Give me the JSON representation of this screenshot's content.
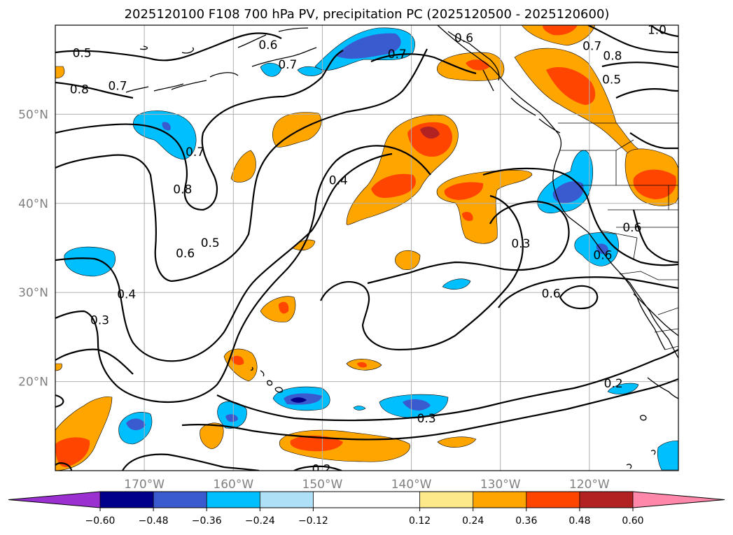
{
  "chart_data": {
    "type": "heatmap",
    "title": "2025120100 F108 700 hPa PV, precipitation PC (2025120500 - 2025120600)",
    "xlabel": "",
    "ylabel": "",
    "xlim": [
      -180,
      -110
    ],
    "ylim": [
      10,
      60
    ],
    "x_ticks": [
      -170,
      -160,
      -150,
      -140,
      -130,
      -120
    ],
    "x_tick_labels": [
      "170°W",
      "160°W",
      "150°W",
      "140°W",
      "130°W",
      "120°W"
    ],
    "y_ticks": [
      20,
      30,
      40,
      50
    ],
    "y_tick_labels": [
      "20°N",
      "30°N",
      "40°N",
      "50°N"
    ],
    "grid": true,
    "colorbar": {
      "levels": [
        -0.6,
        -0.48,
        -0.36,
        -0.24,
        -0.12,
        0.12,
        0.24,
        0.36,
        0.48,
        0.6
      ],
      "tick_labels": [
        "−0.60",
        "−0.48",
        "−0.36",
        "−0.24",
        "−0.12",
        "0.12",
        "0.24",
        "0.36",
        "0.48",
        "0.60"
      ],
      "colors": [
        "#9b30d0",
        "#00008b",
        "#3a5bd0",
        "#00bfff",
        "#aee0f8",
        "#ffffff",
        "#fde88a",
        "#ffa500",
        "#ff4500",
        "#b22222",
        "#ff88aa"
      ],
      "extend": "both"
    },
    "pv_contour_labels": [
      {
        "value": "0.5",
        "lon": -177.0,
        "lat": 56.9
      },
      {
        "value": "0.6",
        "lon": -156.1,
        "lat": 57.8
      },
      {
        "value": "0.7",
        "lon": -153.9,
        "lat": 55.6
      },
      {
        "value": "0.7",
        "lon": -141.6,
        "lat": 56.8
      },
      {
        "value": "0.6",
        "lon": -134.1,
        "lat": 58.6
      },
      {
        "value": "0.8",
        "lon": -177.3,
        "lat": 52.8
      },
      {
        "value": "0.7",
        "lon": -173.0,
        "lat": 53.2
      },
      {
        "value": "0.7",
        "lon": -164.3,
        "lat": 45.8
      },
      {
        "value": "0.8",
        "lon": -165.7,
        "lat": 41.6
      },
      {
        "value": "0.4",
        "lon": -148.2,
        "lat": 42.6
      },
      {
        "value": "0.6",
        "lon": -165.4,
        "lat": 34.4
      },
      {
        "value": "0.5",
        "lon": -162.6,
        "lat": 35.6
      },
      {
        "value": "0.4",
        "lon": -172.0,
        "lat": 29.8
      },
      {
        "value": "0.3",
        "lon": -175.0,
        "lat": 26.9
      },
      {
        "value": "0.3",
        "lon": -127.7,
        "lat": 35.5
      },
      {
        "value": "0.6",
        "lon": -124.3,
        "lat": 29.9
      },
      {
        "value": "0.6",
        "lon": -118.5,
        "lat": 34.2
      },
      {
        "value": "0.3",
        "lon": -138.3,
        "lat": 15.9
      },
      {
        "value": "0.2",
        "lon": -117.3,
        "lat": 19.8
      },
      {
        "value": "0.2",
        "lon": -150.1,
        "lat": 10.2
      },
      {
        "value": "0.7",
        "lon": -119.7,
        "lat": 57.7
      },
      {
        "value": "0.8",
        "lon": -117.4,
        "lat": 56.6
      },
      {
        "value": "0.5",
        "lon": -117.5,
        "lat": 53.9
      },
      {
        "value": "1.0",
        "lon": -112.4,
        "lat": 59.5
      },
      {
        "value": "0.6",
        "lon": -115.2,
        "lat": 37.3
      }
    ]
  }
}
